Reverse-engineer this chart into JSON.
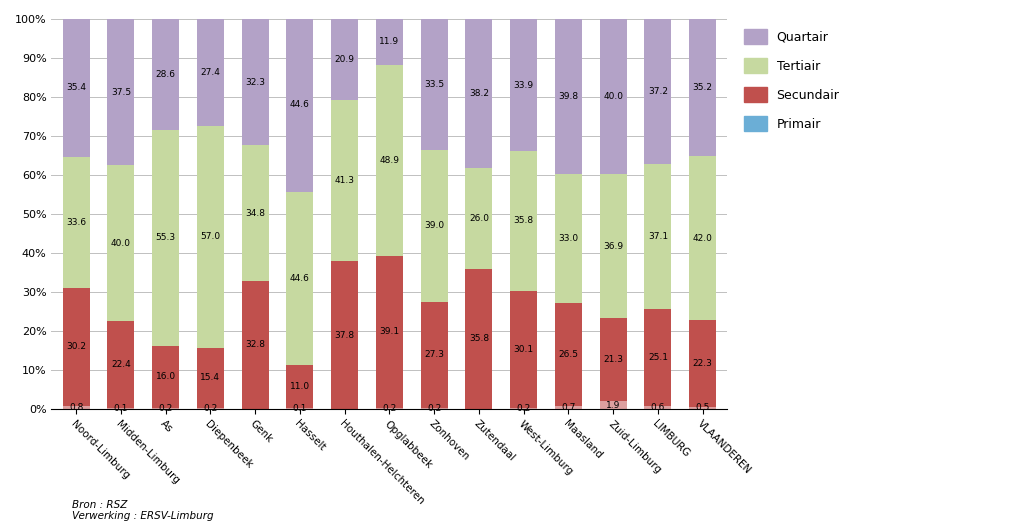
{
  "categories": [
    "Noord-Limburg",
    "Midden-Limburg",
    "As",
    "Diepenbeek",
    "Genk",
    "Hasselt",
    "Houthalen-Helchteren",
    "Opglabbeek",
    "Zonhoven",
    "Zutendaal",
    "West-Limburg",
    "Maasland",
    "Zuid-Limburg",
    "LIMBURG",
    "VLAANDEREN"
  ],
  "primair": [
    0.8,
    0.1,
    0.2,
    0.2,
    0.0,
    0.1,
    0.0,
    0.2,
    0.2,
    0.0,
    0.2,
    0.7,
    1.9,
    0.6,
    0.5
  ],
  "secundair": [
    30.2,
    22.4,
    16.0,
    15.4,
    32.8,
    11.0,
    37.8,
    39.1,
    27.3,
    35.8,
    30.1,
    26.5,
    21.3,
    25.1,
    22.3
  ],
  "tertiair": [
    33.6,
    40.0,
    55.3,
    57.0,
    34.8,
    44.6,
    41.3,
    48.9,
    39.0,
    26.0,
    35.8,
    33.0,
    36.9,
    37.1,
    42.0
  ],
  "quartair": [
    35.4,
    37.5,
    28.6,
    27.4,
    32.3,
    44.6,
    20.9,
    11.9,
    33.5,
    38.2,
    33.9,
    39.8,
    40.0,
    37.2,
    35.2
  ],
  "color_primair": "#dda0a0",
  "color_secundair": "#c0504d",
  "color_tertiair": "#c6d9a0",
  "color_quartair": "#b3a2c7",
  "source_text": "Bron : RSZ\nVerwerking : ERSV-Limburg",
  "bar_width": 0.6
}
